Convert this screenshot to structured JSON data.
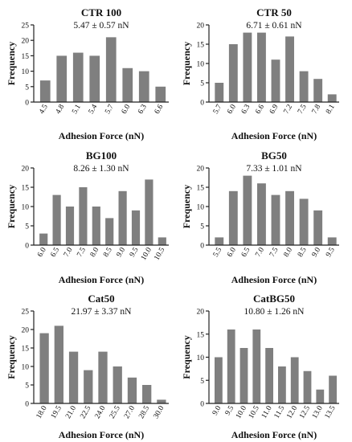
{
  "chart_data": [
    {
      "type": "bar",
      "title": "CTR 100",
      "subtitle": "5.47 ± 0.57 nN",
      "xlabel": "Adhesion Force (nN)",
      "ylabel": "Frequency",
      "categories": [
        "4.5",
        "4.8",
        "5.1",
        "5.4",
        "5.7",
        "6.0",
        "6.3",
        "6.6"
      ],
      "values": [
        7,
        15,
        16,
        15,
        21,
        11,
        10,
        5
      ],
      "ylim": [
        0,
        25
      ],
      "yticks": [
        0,
        5,
        10,
        15,
        20,
        25
      ],
      "bar_color": "#7f7f7f"
    },
    {
      "type": "bar",
      "title": "CTR 50",
      "subtitle": "6.71 ± 0.61 nN",
      "xlabel": "Adhesion Force (nN)",
      "ylabel": "Frequency",
      "categories": [
        "5.7",
        "6.0",
        "6.3",
        "6.6",
        "6.9",
        "7.2",
        "7.5",
        "7.8",
        "8.1"
      ],
      "values": [
        5,
        15,
        18,
        18,
        11,
        17,
        8,
        6,
        2
      ],
      "ylim": [
        0,
        20
      ],
      "yticks": [
        0,
        5,
        10,
        15,
        20
      ],
      "bar_color": "#7f7f7f"
    },
    {
      "type": "bar",
      "title": "BG100",
      "subtitle": "8.26 ± 1.30 nN",
      "xlabel": "Adhesion Force (nN)",
      "ylabel": "Frequency",
      "categories": [
        "6.0",
        "6.5",
        "7.0",
        "7.5",
        "8.0",
        "8.5",
        "9.0",
        "9.5",
        "10.0",
        "10.5"
      ],
      "values": [
        3,
        13,
        10,
        15,
        10,
        7,
        14,
        9,
        17,
        2
      ],
      "ylim": [
        0,
        20
      ],
      "yticks": [
        0,
        5,
        10,
        15,
        20
      ],
      "bar_color": "#7f7f7f"
    },
    {
      "type": "bar",
      "title": "BG50",
      "subtitle": "7.33 ± 1.01 nN",
      "xlabel": "Adhesion Force (nN)",
      "ylabel": "Frequency",
      "categories": [
        "5.5",
        "6.0",
        "6.5",
        "7.0",
        "7.5",
        "8.0",
        "8.5",
        "9.0",
        "9.5"
      ],
      "values": [
        2,
        14,
        18,
        16,
        13,
        14,
        12,
        9,
        2
      ],
      "ylim": [
        0,
        20
      ],
      "yticks": [
        0,
        5,
        10,
        15,
        20
      ],
      "bar_color": "#7f7f7f"
    },
    {
      "type": "bar",
      "title": "Cat50",
      "subtitle": "21.97 ± 3.37 nN",
      "xlabel": "Adhesion Force (nN)",
      "ylabel": "Frequency",
      "categories": [
        "18.0",
        "19.5",
        "21.0",
        "22.5",
        "24.0",
        "25.5",
        "27.0",
        "28.5",
        "30.0"
      ],
      "values": [
        19,
        21,
        14,
        9,
        14,
        10,
        7,
        5,
        1
      ],
      "ylim": [
        0,
        25
      ],
      "yticks": [
        0,
        5,
        10,
        15,
        20,
        25
      ],
      "bar_color": "#7f7f7f"
    },
    {
      "type": "bar",
      "title": "CatBG50",
      "subtitle": "10.80 ± 1.26 nN",
      "xlabel": "Adhesion Force (nN)",
      "ylabel": "Frequency",
      "categories": [
        "9.0",
        "9.5",
        "10.0",
        "10.5",
        "11.0",
        "11.5",
        "12.0",
        "12.5",
        "13.0",
        "13.5"
      ],
      "values": [
        10,
        16,
        12,
        16,
        12,
        8,
        10,
        7,
        3,
        6
      ],
      "ylim": [
        0,
        20
      ],
      "yticks": [
        0,
        5,
        10,
        15,
        20
      ],
      "bar_color": "#7f7f7f"
    }
  ]
}
